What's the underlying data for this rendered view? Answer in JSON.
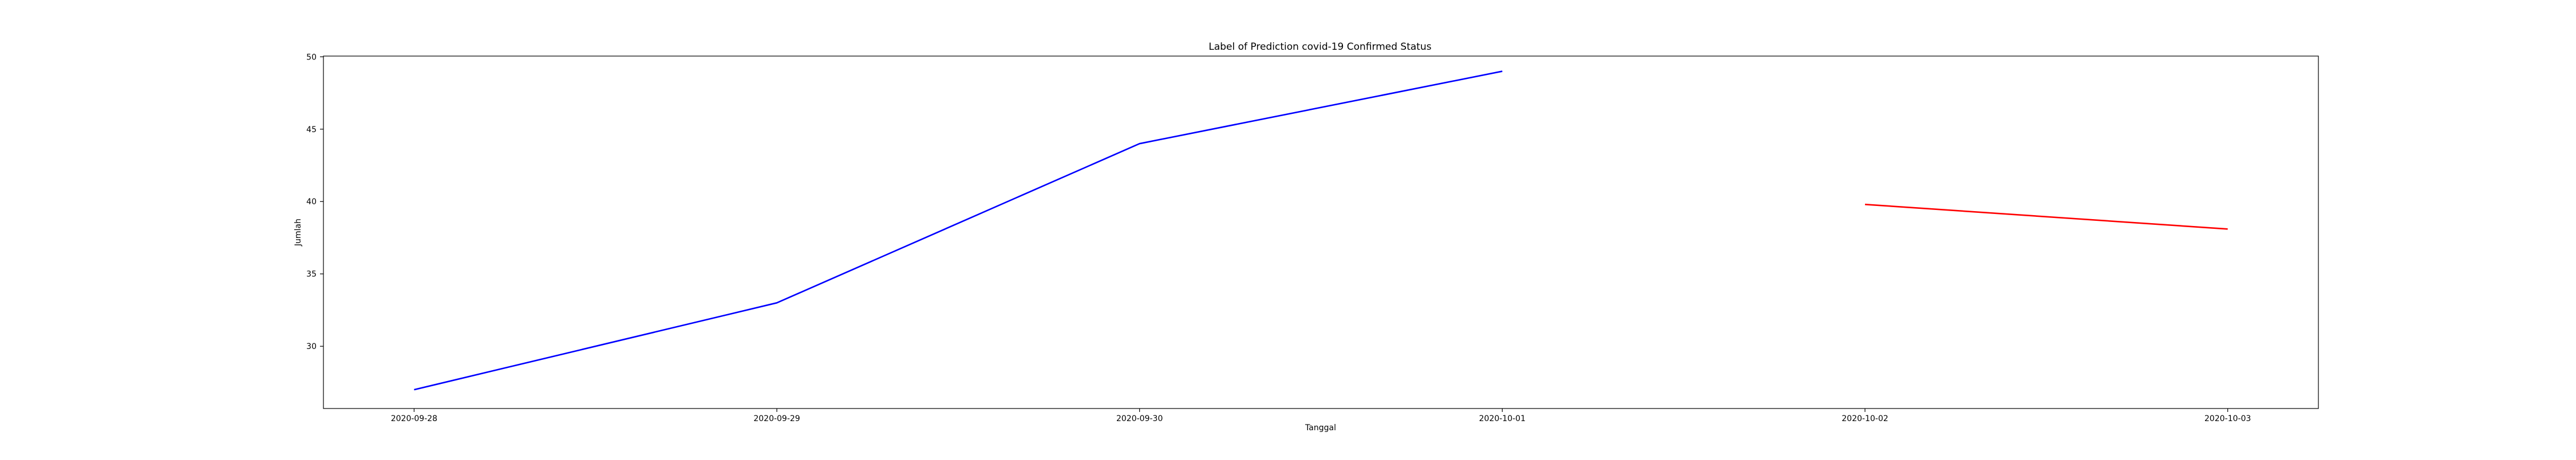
{
  "chart_data": {
    "type": "line",
    "title": "Label of Prediction covid-19 Confirmed Status",
    "xlabel": "Tanggal",
    "ylabel": "Jumlah",
    "x_ticks": [
      "2020-09-28",
      "2020-09-29",
      "2020-09-30",
      "2020-10-01",
      "2020-10-02",
      "2020-10-03"
    ],
    "y_ticks": [
      30,
      35,
      40,
      45,
      50
    ],
    "xlim": [
      "2020-09-27T18:00",
      "2020-10-03T06:00"
    ],
    "ylim": [
      25.7,
      50.05
    ],
    "grid": false,
    "series": [
      {
        "color": "#0000ff",
        "points": [
          {
            "x": "2020-09-28",
            "y": 27
          },
          {
            "x": "2020-09-29",
            "y": 33
          },
          {
            "x": "2020-09-30",
            "y": 44
          },
          {
            "x": "2020-10-01",
            "y": 49
          }
        ]
      },
      {
        "color": "#ff0000",
        "points": [
          {
            "x": "2020-10-02",
            "y": 39.8
          },
          {
            "x": "2020-10-03",
            "y": 38.1
          }
        ]
      }
    ]
  }
}
